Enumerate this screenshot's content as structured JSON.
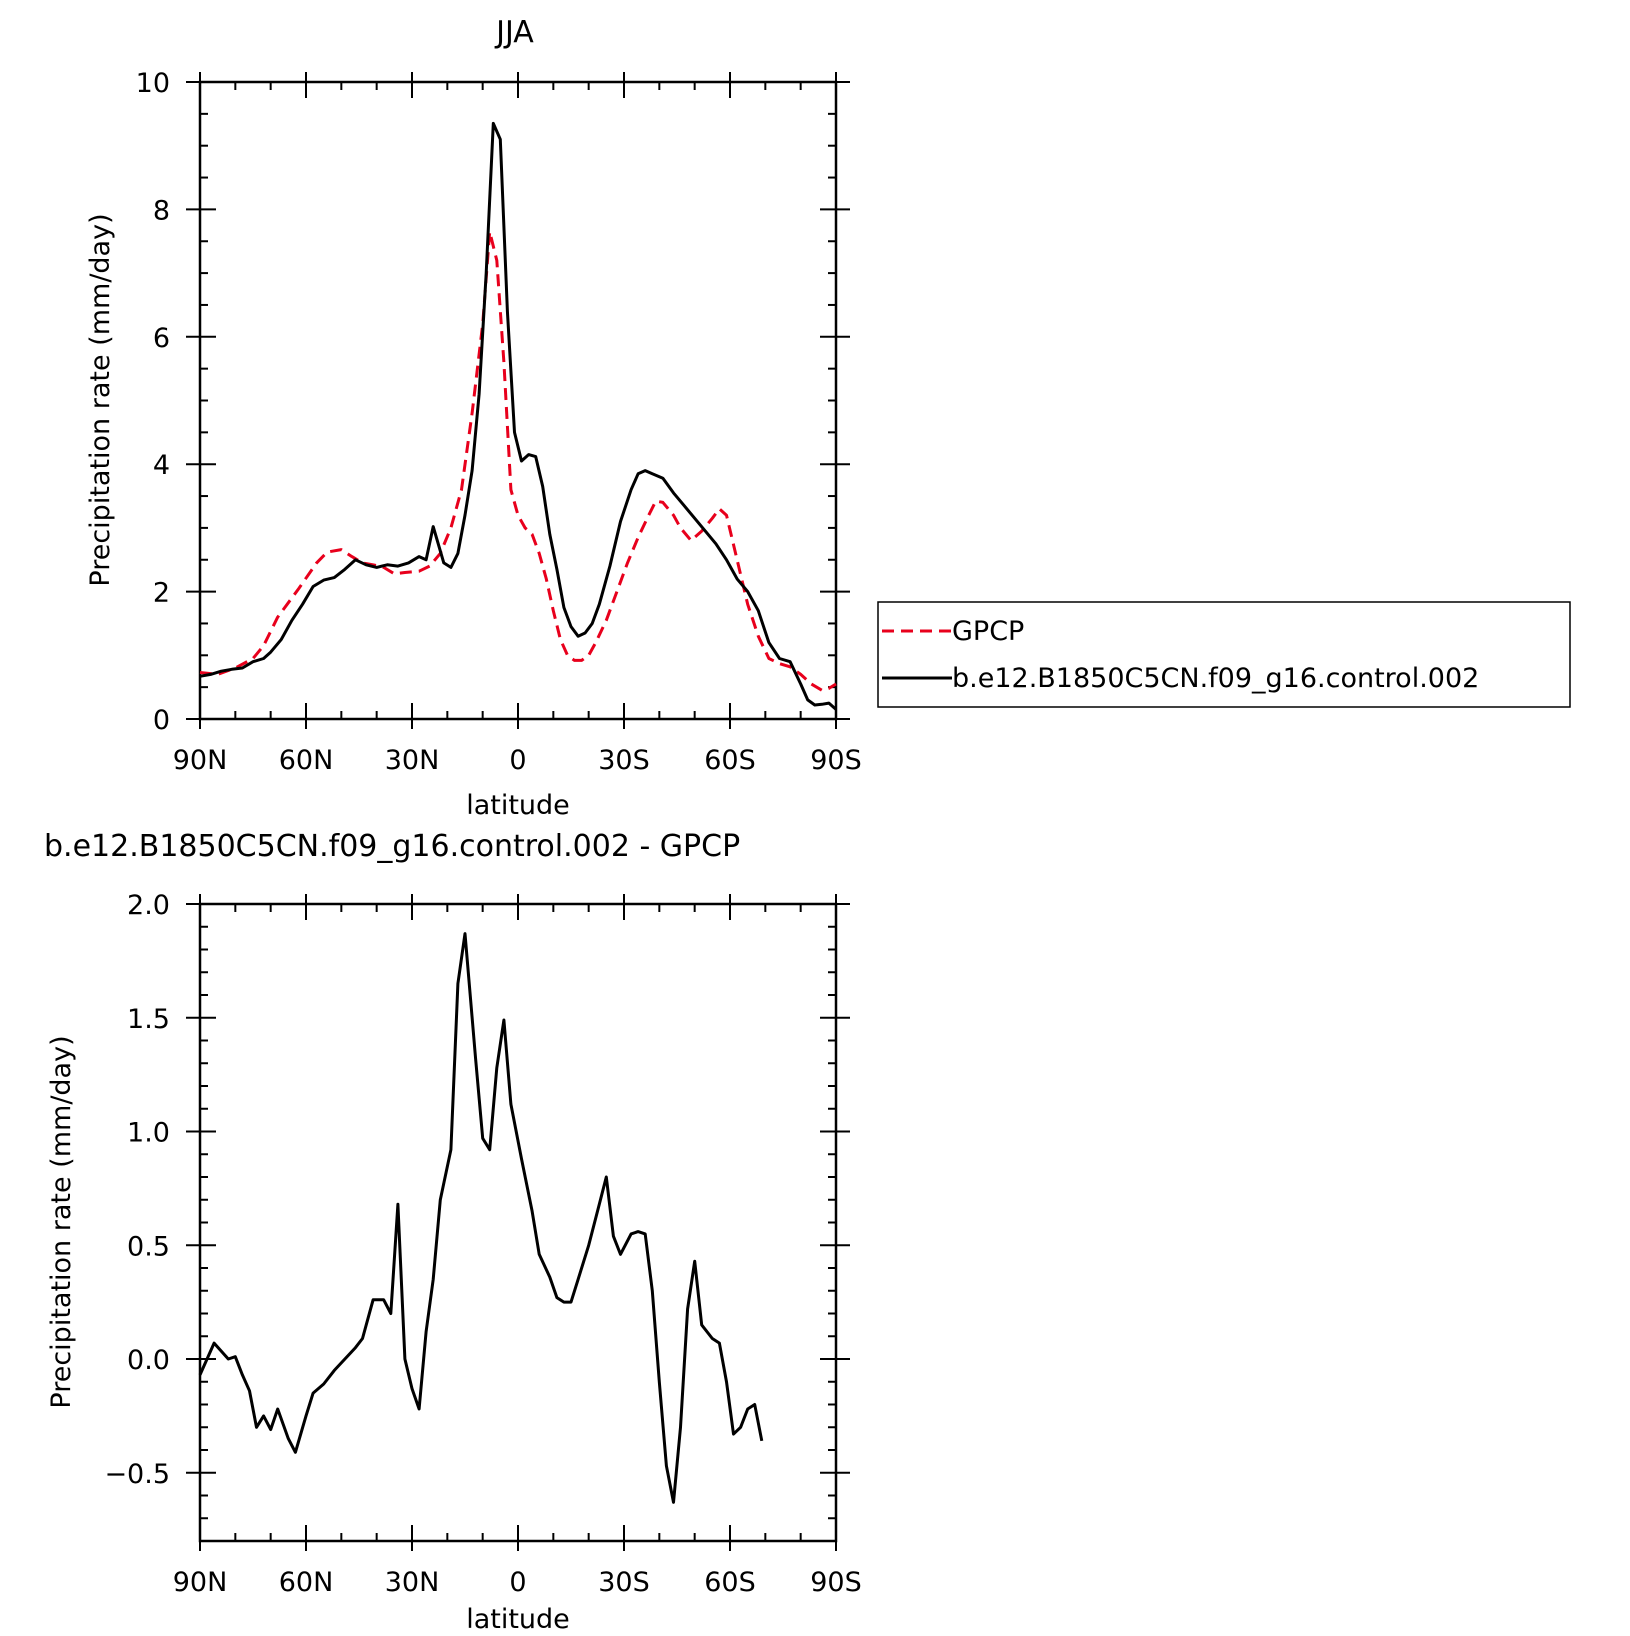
{
  "chart_data": [
    {
      "type": "line",
      "title": "JJA",
      "xlabel": "latitude",
      "ylabel": "Precipitation rate (mm/day)",
      "xlim": [
        -90,
        90
      ],
      "ylim": [
        0,
        10
      ],
      "x_ticks": [
        {
          "value": -90,
          "label": "90N"
        },
        {
          "value": -60,
          "label": "60N"
        },
        {
          "value": -30,
          "label": "30N"
        },
        {
          "value": 0,
          "label": "0"
        },
        {
          "value": 30,
          "label": "30S"
        },
        {
          "value": 60,
          "label": "60S"
        },
        {
          "value": 90,
          "label": "90S"
        }
      ],
      "y_ticks": [
        {
          "value": 0,
          "label": "0"
        },
        {
          "value": 2,
          "label": "2"
        },
        {
          "value": 4,
          "label": "4"
        },
        {
          "value": 6,
          "label": "6"
        },
        {
          "value": 8,
          "label": "8"
        },
        {
          "value": 10,
          "label": "10"
        }
      ],
      "legend": {
        "placement": "right"
      },
      "series": [
        {
          "name": "GPCP",
          "color": "#e8001c",
          "style": "dashed",
          "points": [
            [
              -90,
              0.73
            ],
            [
              -85,
              0.7
            ],
            [
              -80,
              0.8
            ],
            [
              -75,
              0.95
            ],
            [
              -72,
              1.15
            ],
            [
              -68,
              1.6
            ],
            [
              -62,
              2.05
            ],
            [
              -57,
              2.45
            ],
            [
              -54,
              2.62
            ],
            [
              -50,
              2.66
            ],
            [
              -47,
              2.55
            ],
            [
              -44,
              2.45
            ],
            [
              -41,
              2.42
            ],
            [
              -38,
              2.38
            ],
            [
              -35,
              2.28
            ],
            [
              -32,
              2.3
            ],
            [
              -28,
              2.32
            ],
            [
              -25,
              2.4
            ],
            [
              -22,
              2.6
            ],
            [
              -19,
              3.0
            ],
            [
              -16,
              3.6
            ],
            [
              -13,
              4.8
            ],
            [
              -10,
              6.2
            ],
            [
              -8,
              7.65
            ],
            [
              -6,
              7.2
            ],
            [
              -4,
              5.6
            ],
            [
              -2,
              3.6
            ],
            [
              0,
              3.2
            ],
            [
              2,
              3.0
            ],
            [
              4,
              2.9
            ],
            [
              6,
              2.6
            ],
            [
              8,
              2.2
            ],
            [
              10,
              1.7
            ],
            [
              12,
              1.25
            ],
            [
              14,
              1.0
            ],
            [
              16,
              0.92
            ],
            [
              18,
              0.92
            ],
            [
              20,
              1.0
            ],
            [
              22,
              1.2
            ],
            [
              25,
              1.55
            ],
            [
              28,
              2.0
            ],
            [
              31,
              2.45
            ],
            [
              34,
              2.85
            ],
            [
              37,
              3.2
            ],
            [
              39,
              3.42
            ],
            [
              41,
              3.4
            ],
            [
              44,
              3.2
            ],
            [
              46,
              3.0
            ],
            [
              49,
              2.8
            ],
            [
              52,
              2.95
            ],
            [
              55,
              3.15
            ],
            [
              57,
              3.3
            ],
            [
              59,
              3.2
            ],
            [
              62,
              2.5
            ],
            [
              65,
              1.8
            ],
            [
              68,
              1.3
            ],
            [
              71,
              0.95
            ],
            [
              74,
              0.87
            ],
            [
              77,
              0.82
            ],
            [
              80,
              0.7
            ],
            [
              83,
              0.55
            ],
            [
              86,
              0.45
            ],
            [
              88,
              0.48
            ],
            [
              90,
              0.55
            ]
          ]
        },
        {
          "name": "b.e12.B1850C5CN.f09_g16.control.002",
          "color": "#000000",
          "style": "solid",
          "points": [
            [
              -90,
              0.67
            ],
            [
              -87,
              0.7
            ],
            [
              -84,
              0.75
            ],
            [
              -81,
              0.78
            ],
            [
              -78,
              0.8
            ],
            [
              -75,
              0.9
            ],
            [
              -72,
              0.95
            ],
            [
              -70,
              1.05
            ],
            [
              -67,
              1.25
            ],
            [
              -64,
              1.55
            ],
            [
              -61,
              1.8
            ],
            [
              -58,
              2.08
            ],
            [
              -55,
              2.18
            ],
            [
              -52,
              2.22
            ],
            [
              -49,
              2.35
            ],
            [
              -46,
              2.5
            ],
            [
              -43,
              2.42
            ],
            [
              -40,
              2.38
            ],
            [
              -37,
              2.42
            ],
            [
              -34,
              2.4
            ],
            [
              -31,
              2.45
            ],
            [
              -28,
              2.55
            ],
            [
              -26,
              2.5
            ],
            [
              -24,
              3.02
            ],
            [
              -21,
              2.45
            ],
            [
              -19,
              2.38
            ],
            [
              -17,
              2.6
            ],
            [
              -15,
              3.2
            ],
            [
              -13,
              3.9
            ],
            [
              -11,
              5.1
            ],
            [
              -9,
              7.0
            ],
            [
              -7,
              9.35
            ],
            [
              -5,
              9.1
            ],
            [
              -3,
              6.4
            ],
            [
              -1,
              4.5
            ],
            [
              1,
              4.05
            ],
            [
              3,
              4.15
            ],
            [
              5,
              4.12
            ],
            [
              7,
              3.65
            ],
            [
              9,
              2.9
            ],
            [
              11,
              2.35
            ],
            [
              13,
              1.75
            ],
            [
              15,
              1.45
            ],
            [
              17,
              1.3
            ],
            [
              19,
              1.35
            ],
            [
              21,
              1.5
            ],
            [
              23,
              1.8
            ],
            [
              26,
              2.4
            ],
            [
              29,
              3.1
            ],
            [
              32,
              3.6
            ],
            [
              34,
              3.85
            ],
            [
              36,
              3.9
            ],
            [
              38,
              3.85
            ],
            [
              41,
              3.78
            ],
            [
              44,
              3.55
            ],
            [
              47,
              3.35
            ],
            [
              50,
              3.15
            ],
            [
              53,
              2.95
            ],
            [
              56,
              2.75
            ],
            [
              59,
              2.5
            ],
            [
              62,
              2.2
            ],
            [
              65,
              2.0
            ],
            [
              68,
              1.7
            ],
            [
              71,
              1.2
            ],
            [
              74,
              0.95
            ],
            [
              77,
              0.9
            ],
            [
              80,
              0.55
            ],
            [
              82,
              0.3
            ],
            [
              84,
              0.22
            ],
            [
              86,
              0.23
            ],
            [
              88,
              0.25
            ],
            [
              90,
              0.15
            ]
          ]
        }
      ]
    },
    {
      "type": "line",
      "title": "b.e12.B1850C5CN.f09_g16.control.002 - GPCP",
      "xlabel": "latitude",
      "ylabel": "Precipitation rate (mm/day)",
      "xlim": [
        -90,
        90
      ],
      "ylim": [
        -0.8,
        2.0
      ],
      "x_ticks": [
        {
          "value": -90,
          "label": "90N"
        },
        {
          "value": -60,
          "label": "60N"
        },
        {
          "value": -30,
          "label": "30N"
        },
        {
          "value": 0,
          "label": "0"
        },
        {
          "value": 30,
          "label": "30S"
        },
        {
          "value": 60,
          "label": "60S"
        },
        {
          "value": 90,
          "label": "90S"
        }
      ],
      "y_ticks": [
        {
          "value": -0.5,
          "label": "−0.5"
        },
        {
          "value": 0.0,
          "label": "0.0"
        },
        {
          "value": 0.5,
          "label": "0.5"
        },
        {
          "value": 1.0,
          "label": "1.0"
        },
        {
          "value": 1.5,
          "label": "1.5"
        },
        {
          "value": 2.0,
          "label": "2.0"
        }
      ],
      "series": [
        {
          "color": "#000000",
          "style": "solid",
          "points": [
            [
              -90,
              -0.07
            ],
            [
              -86,
              0.07
            ],
            [
              -82,
              0.0
            ],
            [
              -80,
              0.01
            ],
            [
              -78,
              -0.07
            ],
            [
              -76,
              -0.14
            ],
            [
              -74,
              -0.3
            ],
            [
              -72,
              -0.25
            ],
            [
              -70,
              -0.31
            ],
            [
              -68,
              -0.22
            ],
            [
              -65,
              -0.35
            ],
            [
              -63,
              -0.41
            ],
            [
              -60,
              -0.25
            ],
            [
              -58,
              -0.15
            ],
            [
              -55,
              -0.11
            ],
            [
              -52,
              -0.05
            ],
            [
              -49,
              0.0
            ],
            [
              -46,
              0.05
            ],
            [
              -44,
              0.09
            ],
            [
              -41,
              0.26
            ],
            [
              -38,
              0.26
            ],
            [
              -36,
              0.2
            ],
            [
              -34,
              0.68
            ],
            [
              -32,
              0.0
            ],
            [
              -30,
              -0.13
            ],
            [
              -28,
              -0.22
            ],
            [
              -26,
              0.12
            ],
            [
              -24,
              0.35
            ],
            [
              -22,
              0.7
            ],
            [
              -19,
              0.92
            ],
            [
              -17,
              1.65
            ],
            [
              -15,
              1.87
            ],
            [
              -12,
              1.32
            ],
            [
              -10,
              0.97
            ],
            [
              -8,
              0.92
            ],
            [
              -6,
              1.28
            ],
            [
              -4,
              1.49
            ],
            [
              -2,
              1.12
            ],
            [
              1,
              0.88
            ],
            [
              4,
              0.65
            ],
            [
              6,
              0.46
            ],
            [
              9,
              0.36
            ],
            [
              11,
              0.27
            ],
            [
              13,
              0.25
            ],
            [
              15,
              0.25
            ],
            [
              17,
              0.35
            ],
            [
              20,
              0.5
            ],
            [
              23,
              0.68
            ],
            [
              25,
              0.8
            ],
            [
              27,
              0.54
            ],
            [
              29,
              0.46
            ],
            [
              32,
              0.55
            ],
            [
              34,
              0.56
            ],
            [
              36,
              0.55
            ],
            [
              38,
              0.3
            ],
            [
              40,
              -0.1
            ],
            [
              42,
              -0.47
            ],
            [
              44,
              -0.63
            ],
            [
              46,
              -0.3
            ],
            [
              48,
              0.22
            ],
            [
              50,
              0.43
            ],
            [
              52,
              0.15
            ],
            [
              55,
              0.09
            ],
            [
              57,
              0.07
            ],
            [
              59,
              -0.1
            ],
            [
              61,
              -0.33
            ],
            [
              63,
              -0.3
            ],
            [
              65,
              -0.22
            ],
            [
              67,
              -0.2
            ],
            [
              69,
              -0.36
            ]
          ]
        }
      ]
    }
  ]
}
